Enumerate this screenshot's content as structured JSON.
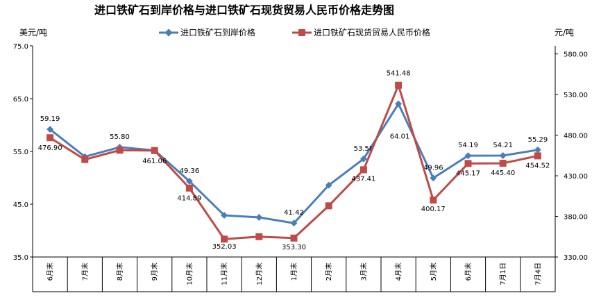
{
  "chart_data": {
    "type": "line",
    "title": "进口铁矿石到岸价格与进口铁矿石现货贸易人民币价格走势图",
    "y_left_label": "美元/吨",
    "y_right_label": "元/吨",
    "y_left_lim": [
      35.0,
      75.0
    ],
    "y_left_ticks": [
      "35.0",
      "45.0",
      "55.0",
      "65.0",
      "75.0"
    ],
    "y_right_lim": [
      330.0,
      590.0
    ],
    "y_right_ticks": [
      "330.00",
      "380.00",
      "430.00",
      "480.00",
      "530.00",
      "580.00"
    ],
    "legend_position": "top",
    "categories": [
      "6月末",
      "7月末",
      "8月末",
      "9月末",
      "10月末",
      "11月末",
      "12月末",
      "1月末",
      "2月末",
      "3月末",
      "4月末",
      "5月末",
      "6月末",
      "7月1日",
      "7月4日"
    ],
    "series": [
      {
        "name": "进口铁矿石到岸价格",
        "axis": "left",
        "color": "#4a7ebb",
        "marker": "diamond",
        "values": [
          59.19,
          54.0,
          55.8,
          55.2,
          49.36,
          42.9,
          42.5,
          41.42,
          48.6,
          53.58,
          64.01,
          49.96,
          54.19,
          54.21,
          55.29
        ],
        "labels": [
          "59.19",
          "",
          "55.80",
          "",
          "49.36",
          "",
          "",
          "41.42",
          "",
          "53.58",
          "64.01",
          "49.96",
          "54.19",
          "54.21",
          "55.29"
        ]
      },
      {
        "name": "进口铁矿石现货贸易人民币价格",
        "axis": "right",
        "color": "#be4b48",
        "marker": "square",
        "values": [
          476.9,
          450.0,
          461.5,
          461.06,
          414.89,
          352.03,
          355.0,
          353.3,
          393.0,
          437.41,
          541.48,
          400.17,
          445.17,
          445.4,
          454.52
        ],
        "labels": [
          "476.90",
          "",
          "",
          "461.06",
          "414.89",
          "352.03",
          "",
          "353.30",
          "",
          "437.41",
          "541.48",
          "400.17",
          "445.17",
          "445.40",
          "454.52"
        ]
      }
    ]
  }
}
